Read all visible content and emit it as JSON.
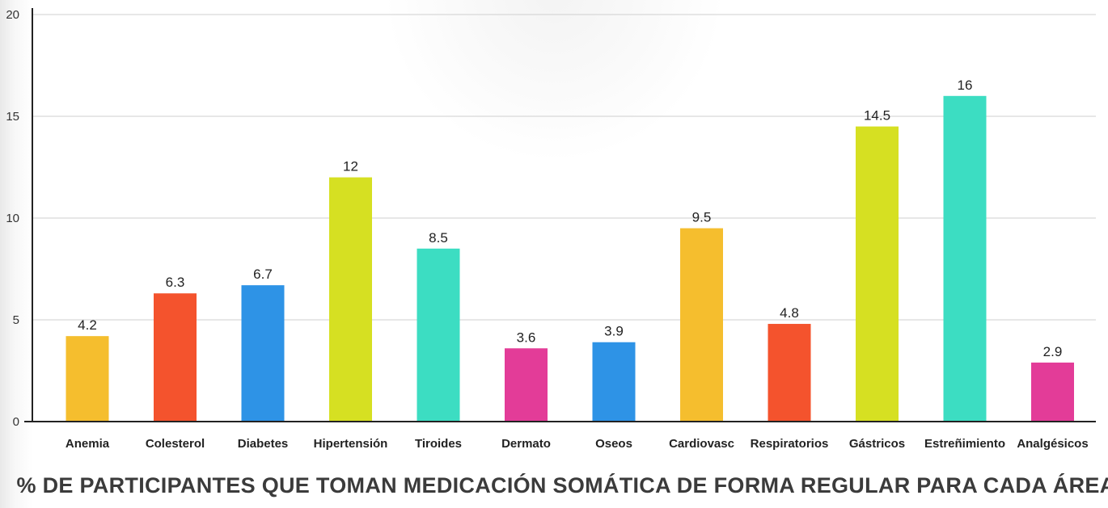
{
  "chart_data": {
    "type": "bar",
    "title": "% DE PARTICIPANTES QUE TOMAN MEDICACIÓN SOMÁTICA DE FORMA REGULAR PARA CADA ÁREA",
    "xlabel": "",
    "ylabel": "",
    "ylim": [
      0,
      20
    ],
    "yticks": [
      0,
      5,
      10,
      15,
      20
    ],
    "grid": true,
    "categories": [
      "Anemia",
      "Colesterol",
      "Diabetes",
      "Hipertensión",
      "Tiroides",
      "Dermato",
      "Oseos",
      "Cardiovasc",
      "Respiratorios",
      "Gástricos",
      "Estreñimiento",
      "Analgésicos"
    ],
    "values": [
      4.2,
      6.3,
      6.7,
      12,
      8.5,
      3.6,
      3.9,
      9.5,
      4.8,
      14.5,
      16,
      2.9
    ],
    "value_labels": [
      "4.2",
      "6.3",
      "6.7",
      "12",
      "8.5",
      "3.6",
      "3.9",
      "9.5",
      "4.8",
      "14.5",
      "16",
      "2.9"
    ],
    "colors": [
      "#F5BE2E",
      "#F4532D",
      "#2E93E6",
      "#D6E022",
      "#3CDDC2",
      "#E33C98",
      "#2E93E6",
      "#F5BE2E",
      "#F4532D",
      "#D6E022",
      "#3CDDC2",
      "#E33C98"
    ]
  }
}
